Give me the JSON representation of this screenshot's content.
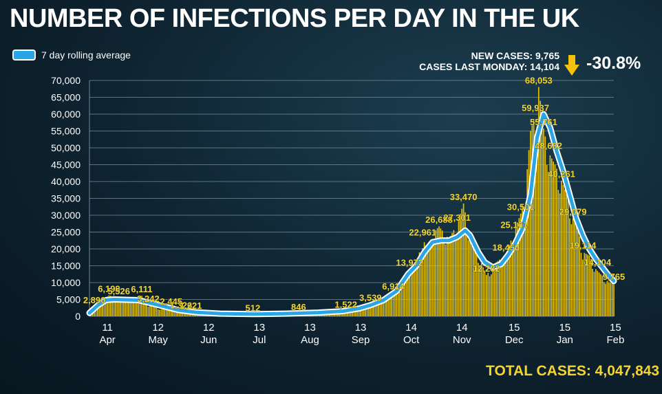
{
  "title": "NUMBER OF INFECTIONS PER DAY IN THE UK",
  "legend": {
    "label": "7 day rolling average"
  },
  "stats": {
    "new_cases": "NEW CASES: 9,765",
    "last_monday": "CASES LAST MONDAY: 14,104",
    "change": "-30.8%"
  },
  "total": "TOTAL CASES: 4,047,843",
  "colors": {
    "bars": "#e6c200",
    "line": "#2aa6e6",
    "line_outline": "#ffffff",
    "labels": "#f4d530",
    "grid": "#6f8894"
  },
  "chart_data": {
    "type": "bar",
    "title": "NUMBER OF INFECTIONS PER DAY IN THE UK",
    "xlabel": "",
    "ylabel": "",
    "ylim": [
      0,
      70000
    ],
    "yticks": [
      "0",
      "5,000",
      "10,000",
      "15,000",
      "20,000",
      "25,000",
      "30,000",
      "35,000",
      "40,000",
      "45,000",
      "50,000",
      "55,000",
      "60,000",
      "65,000",
      "70,000"
    ],
    "xticks": [
      {
        "day": 11,
        "day_label": "11",
        "month_label": "Apr"
      },
      {
        "day": 42,
        "day_label": "12",
        "month_label": "May"
      },
      {
        "day": 73,
        "day_label": "12",
        "month_label": "Jun"
      },
      {
        "day": 104,
        "day_label": "13",
        "month_label": "Jul"
      },
      {
        "day": 135,
        "day_label": "13",
        "month_label": "Aug"
      },
      {
        "day": 166,
        "day_label": "13",
        "month_label": "Sep"
      },
      {
        "day": 197,
        "day_label": "14",
        "month_label": "Oct"
      },
      {
        "day": 228,
        "day_label": "14",
        "month_label": "Nov"
      },
      {
        "day": 260,
        "day_label": "15",
        "month_label": "Dec"
      },
      {
        "day": 291,
        "day_label": "15",
        "month_label": "Jan"
      },
      {
        "day": 322,
        "day_label": "15",
        "month_label": "Feb"
      }
    ],
    "daily_cases_keypoints": [
      [
        0,
        2400
      ],
      [
        3,
        2890
      ],
      [
        6,
        4500
      ],
      [
        9,
        5200
      ],
      [
        12,
        6199
      ],
      [
        17,
        5526
      ],
      [
        22,
        5000
      ],
      [
        28,
        4500
      ],
      [
        32,
        6111
      ],
      [
        36,
        3242
      ],
      [
        44,
        2100
      ],
      [
        50,
        2445
      ],
      [
        56,
        1326
      ],
      [
        62,
        1221
      ],
      [
        70,
        900
      ],
      [
        80,
        700
      ],
      [
        90,
        600
      ],
      [
        100,
        512
      ],
      [
        115,
        700
      ],
      [
        128,
        846
      ],
      [
        140,
        1000
      ],
      [
        150,
        1300
      ],
      [
        157,
        1522
      ],
      [
        165,
        2200
      ],
      [
        172,
        3539
      ],
      [
        180,
        4500
      ],
      [
        186,
        6914
      ],
      [
        191,
        8500
      ],
      [
        196,
        13972
      ],
      [
        200,
        15000
      ],
      [
        204,
        22961
      ],
      [
        207,
        20000
      ],
      [
        211,
        25000
      ],
      [
        214,
        26688
      ],
      [
        220,
        23000
      ],
      [
        225,
        27301
      ],
      [
        229,
        33470
      ],
      [
        233,
        23000
      ],
      [
        238,
        18000
      ],
      [
        243,
        12282
      ],
      [
        249,
        16000
      ],
      [
        255,
        18450
      ],
      [
        260,
        25161
      ],
      [
        264,
        30501
      ],
      [
        267,
        38000
      ],
      [
        270,
        55000
      ],
      [
        273,
        59937
      ],
      [
        275,
        68053
      ],
      [
        278,
        55761
      ],
      [
        281,
        48682
      ],
      [
        285,
        45000
      ],
      [
        289,
        40261
      ],
      [
        293,
        35000
      ],
      [
        296,
        29079
      ],
      [
        299,
        26000
      ],
      [
        302,
        19114
      ],
      [
        306,
        18000
      ],
      [
        310,
        14000
      ],
      [
        314,
        12000
      ],
      [
        318,
        10000
      ],
      [
        321,
        9765
      ]
    ],
    "rolling_average_keypoints": [
      [
        0,
        1000
      ],
      [
        5,
        3200
      ],
      [
        10,
        4800
      ],
      [
        15,
        5000
      ],
      [
        22,
        4900
      ],
      [
        30,
        4800
      ],
      [
        35,
        4200
      ],
      [
        45,
        3000
      ],
      [
        55,
        1800
      ],
      [
        65,
        1200
      ],
      [
        80,
        800
      ],
      [
        100,
        650
      ],
      [
        120,
        800
      ],
      [
        140,
        1100
      ],
      [
        155,
        1500
      ],
      [
        165,
        2300
      ],
      [
        172,
        3300
      ],
      [
        180,
        4800
      ],
      [
        188,
        7500
      ],
      [
        195,
        12500
      ],
      [
        200,
        15000
      ],
      [
        205,
        19000
      ],
      [
        210,
        22000
      ],
      [
        215,
        22500
      ],
      [
        220,
        22500
      ],
      [
        225,
        23500
      ],
      [
        230,
        25500
      ],
      [
        233,
        24000
      ],
      [
        238,
        19000
      ],
      [
        242,
        16000
      ],
      [
        247,
        14500
      ],
      [
        252,
        15500
      ],
      [
        256,
        18000
      ],
      [
        260,
        21000
      ],
      [
        265,
        26000
      ],
      [
        270,
        36000
      ],
      [
        274,
        53000
      ],
      [
        278,
        60000
      ],
      [
        282,
        56000
      ],
      [
        286,
        49000
      ],
      [
        290,
        43000
      ],
      [
        294,
        36000
      ],
      [
        298,
        29000
      ],
      [
        302,
        24000
      ],
      [
        306,
        20000
      ],
      [
        310,
        17000
      ],
      [
        314,
        14500
      ],
      [
        318,
        12000
      ],
      [
        321,
        10500
      ]
    ],
    "data_labels": [
      {
        "day": 3,
        "value": 2890,
        "label": "2,890"
      },
      {
        "day": 12,
        "value": 6199,
        "label": "6,199"
      },
      {
        "day": 18,
        "value": 5526,
        "label": "5,526"
      },
      {
        "day": 32,
        "value": 6111,
        "label": "6,111"
      },
      {
        "day": 36,
        "value": 3242,
        "label": "3,242"
      },
      {
        "day": 50,
        "value": 2445,
        "label": "2,445"
      },
      {
        "day": 56,
        "value": 1326,
        "label": "1,326"
      },
      {
        "day": 62,
        "value": 1221,
        "label": "1,221"
      },
      {
        "day": 100,
        "value": 512,
        "label": "512"
      },
      {
        "day": 128,
        "value": 846,
        "label": "846"
      },
      {
        "day": 157,
        "value": 1522,
        "label": "1,522"
      },
      {
        "day": 172,
        "value": 3539,
        "label": "3,539"
      },
      {
        "day": 186,
        "value": 6914,
        "label": "6,914"
      },
      {
        "day": 196,
        "value": 13972,
        "label": "13,972"
      },
      {
        "day": 204,
        "value": 22961,
        "label": "22,961"
      },
      {
        "day": 214,
        "value": 26688,
        "label": "26,688"
      },
      {
        "day": 225,
        "value": 27301,
        "label": "27,301"
      },
      {
        "day": 229,
        "value": 33470,
        "label": "33,470"
      },
      {
        "day": 243,
        "value": 12282,
        "label": "12,282"
      },
      {
        "day": 255,
        "value": 18450,
        "label": "18,450"
      },
      {
        "day": 260,
        "value": 25161,
        "label": "25,161"
      },
      {
        "day": 264,
        "value": 30501,
        "label": "30,501"
      },
      {
        "day": 273,
        "value": 59937,
        "label": "59,937"
      },
      {
        "day": 275,
        "value": 68053,
        "label": "68,053"
      },
      {
        "day": 278,
        "value": 55761,
        "label": "55,761"
      },
      {
        "day": 281,
        "value": 48682,
        "label": "48,682"
      },
      {
        "day": 289,
        "value": 40261,
        "label": "40,261"
      },
      {
        "day": 296,
        "value": 29079,
        "label": "29,079"
      },
      {
        "day": 302,
        "value": 19114,
        "label": "19,114"
      },
      {
        "day": 311,
        "value": 14104,
        "label": "14,104"
      },
      {
        "day": 321,
        "value": 9765,
        "label": "9,765"
      }
    ]
  }
}
